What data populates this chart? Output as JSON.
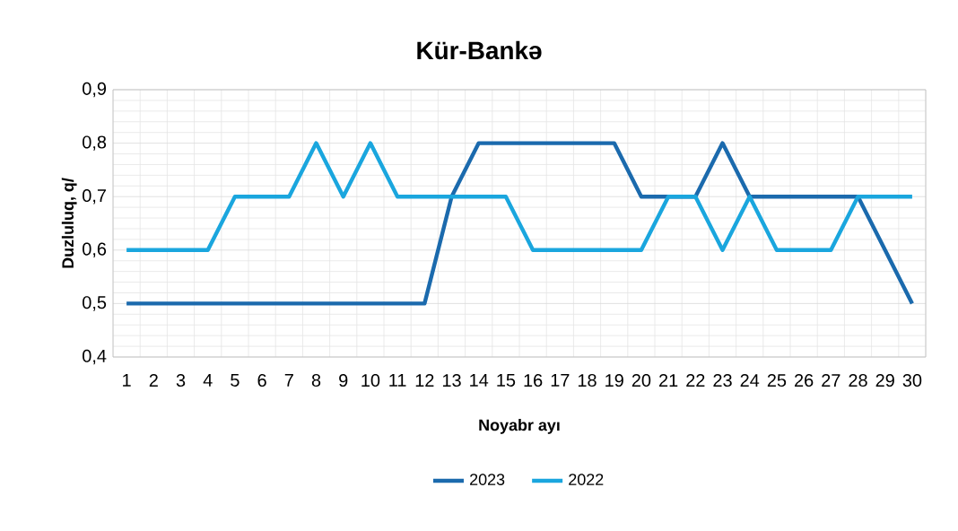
{
  "chart_data": {
    "type": "line",
    "title": "Kür-Bankə",
    "xlabel": "Noyabr ayı",
    "ylabel": "Duzluluq, q/",
    "categories": [
      "1",
      "2",
      "3",
      "4",
      "5",
      "6",
      "7",
      "8",
      "9",
      "10",
      "11",
      "12",
      "13",
      "14",
      "15",
      "16",
      "17",
      "18",
      "19",
      "20",
      "21",
      "22",
      "23",
      "24",
      "25",
      "26",
      "27",
      "28",
      "29",
      "30"
    ],
    "series": [
      {
        "name": "2023",
        "color": "#1b6aad",
        "values": [
          0.5,
          0.5,
          0.5,
          0.5,
          0.5,
          0.5,
          0.5,
          0.5,
          0.5,
          0.5,
          0.5,
          0.5,
          0.7,
          0.8,
          0.8,
          0.8,
          0.8,
          0.8,
          0.8,
          0.7,
          0.7,
          0.7,
          0.8,
          0.7,
          0.7,
          0.7,
          0.7,
          0.7,
          0.6,
          0.5
        ]
      },
      {
        "name": "2022",
        "color": "#1aa6de",
        "values": [
          0.6,
          0.6,
          0.6,
          0.6,
          0.7,
          0.7,
          0.7,
          0.8,
          0.7,
          0.8,
          0.7,
          0.7,
          0.7,
          0.7,
          0.7,
          0.6,
          0.6,
          0.6,
          0.6,
          0.6,
          0.7,
          0.7,
          0.6,
          0.7,
          0.6,
          0.6,
          0.6,
          0.7,
          0.7,
          0.7
        ]
      }
    ],
    "ylim": [
      0.4,
      0.9
    ],
    "yticks": [
      {
        "value": 0.4,
        "label": "0,4"
      },
      {
        "value": 0.5,
        "label": "0,5"
      },
      {
        "value": 0.6,
        "label": "0,6"
      },
      {
        "value": 0.7,
        "label": "0,7"
      },
      {
        "value": 0.8,
        "label": "0,8"
      },
      {
        "value": 0.9,
        "label": "0,9"
      }
    ],
    "grid": true,
    "legend": "bottom",
    "marker": "none",
    "line_style": "solid"
  }
}
